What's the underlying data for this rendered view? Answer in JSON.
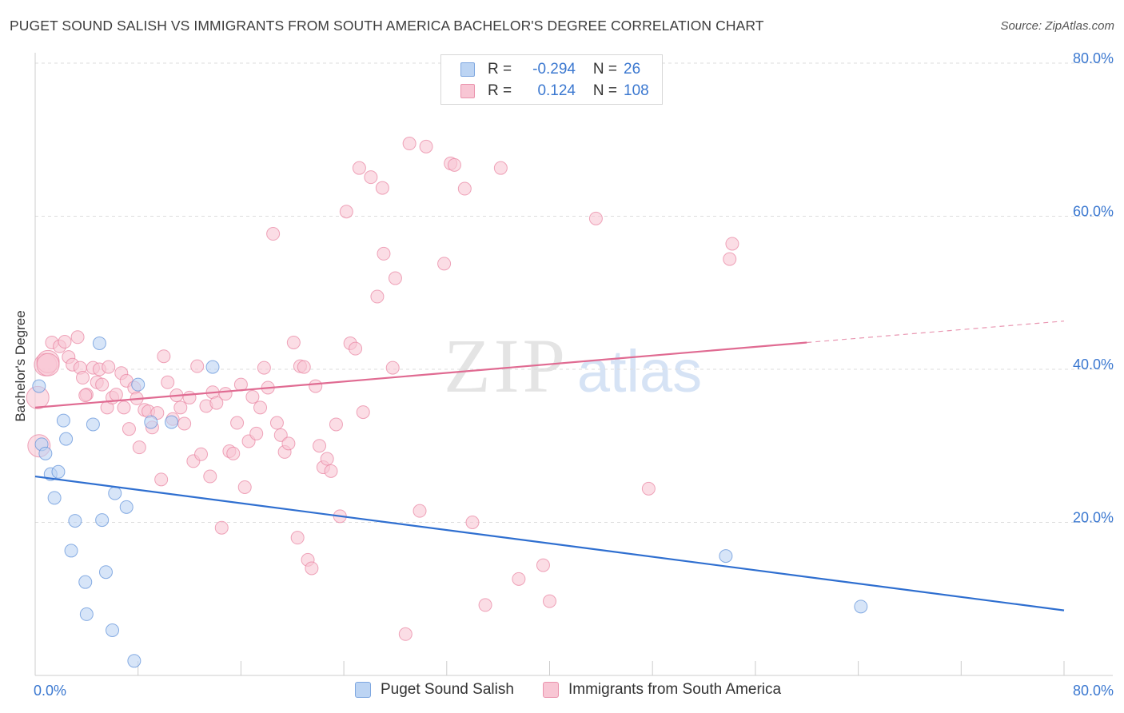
{
  "title": "PUGET SOUND SALISH VS IMMIGRANTS FROM SOUTH AMERICA BACHELOR'S DEGREE CORRELATION CHART",
  "source": "Source: ZipAtlas.com",
  "watermark": {
    "zip": "ZIP",
    "atlas": "atlas"
  },
  "legend_top": [
    {
      "r_label": "R =",
      "r_value": "-0.294",
      "n_label": "N =",
      "n_value": "26",
      "color": "#a8c8f0"
    },
    {
      "r_label": "R =",
      "r_value": "0.124",
      "n_label": "N =",
      "n_value": "108",
      "color": "#f7b6c8"
    }
  ],
  "chart_data": {
    "type": "scatter",
    "ylabel": "Bachelor's Degree",
    "xlim": [
      0,
      80
    ],
    "ylim": [
      0,
      80
    ],
    "x_tick_labels": [
      {
        "value": 0,
        "label": "0.0%"
      },
      {
        "value": 80,
        "label": "80.0%"
      }
    ],
    "y_tick_labels": [
      {
        "value": 20,
        "label": "20.0%"
      },
      {
        "value": 40,
        "label": "40.0%"
      },
      {
        "value": 60,
        "label": "60.0%"
      },
      {
        "value": 80,
        "label": "80.0%"
      }
    ],
    "grid": true,
    "legend_position": "bottom",
    "series": [
      {
        "name": "Puget Sound Salish",
        "color": "#5b8fd9",
        "fill": "#bcd4f3",
        "trend": {
          "x0": 0,
          "y0": 26.0,
          "x1": 80,
          "y1": 8.5,
          "color": "#2f6fd0",
          "dashed_from": null
        },
        "points": [
          [
            0.3,
            37.8
          ],
          [
            0.5,
            30.2
          ],
          [
            0.8,
            29.0
          ],
          [
            1.2,
            26.3
          ],
          [
            1.5,
            23.2
          ],
          [
            1.8,
            26.6
          ],
          [
            2.2,
            33.3
          ],
          [
            2.4,
            30.9
          ],
          [
            2.8,
            16.3
          ],
          [
            3.1,
            20.2
          ],
          [
            3.9,
            12.2
          ],
          [
            4.0,
            8.0
          ],
          [
            4.5,
            32.8
          ],
          [
            5.0,
            43.4
          ],
          [
            5.2,
            20.3
          ],
          [
            5.5,
            13.5
          ],
          [
            6.0,
            5.9
          ],
          [
            6.2,
            23.8
          ],
          [
            7.1,
            22.0
          ],
          [
            7.7,
            1.9
          ],
          [
            8.0,
            38.0
          ],
          [
            9.0,
            33.1
          ],
          [
            10.6,
            33.1
          ],
          [
            13.8,
            40.3
          ],
          [
            53.7,
            15.6
          ],
          [
            64.2,
            9.0
          ]
        ]
      },
      {
        "name": "Immigrants from South America",
        "color": "#e8819f",
        "fill": "#f8c6d4",
        "trend": {
          "x0": 0,
          "y0": 35.0,
          "x1": 60,
          "y1": 43.5,
          "color": "#e06b92",
          "dashed_from": 60,
          "x2": 80,
          "y2": 46.3
        },
        "points": [
          [
            0.2,
            36.3
          ],
          [
            0.3,
            30.0
          ],
          [
            0.8,
            40.6
          ],
          [
            1.0,
            41.0
          ],
          [
            1.3,
            43.5
          ],
          [
            1.9,
            43.0
          ],
          [
            2.3,
            43.6
          ],
          [
            2.6,
            41.6
          ],
          [
            2.9,
            40.6
          ],
          [
            3.3,
            44.2
          ],
          [
            3.5,
            40.2
          ],
          [
            3.7,
            38.9
          ],
          [
            4.0,
            36.7
          ],
          [
            4.5,
            40.2
          ],
          [
            4.8,
            38.3
          ],
          [
            5.0,
            40.0
          ],
          [
            5.2,
            38.0
          ],
          [
            5.6,
            35.0
          ],
          [
            6.0,
            36.3
          ],
          [
            6.3,
            36.7
          ],
          [
            6.7,
            39.5
          ],
          [
            6.9,
            35.0
          ],
          [
            7.1,
            38.5
          ],
          [
            7.3,
            32.2
          ],
          [
            7.7,
            37.6
          ],
          [
            8.1,
            29.8
          ],
          [
            8.5,
            34.7
          ],
          [
            8.8,
            34.5
          ],
          [
            9.1,
            32.4
          ],
          [
            9.5,
            34.3
          ],
          [
            9.8,
            25.6
          ],
          [
            10.0,
            41.7
          ],
          [
            10.3,
            38.3
          ],
          [
            10.7,
            33.5
          ],
          [
            11.0,
            36.6
          ],
          [
            11.3,
            35.0
          ],
          [
            11.6,
            32.9
          ],
          [
            12.0,
            36.3
          ],
          [
            12.3,
            28.0
          ],
          [
            12.6,
            40.4
          ],
          [
            12.9,
            28.9
          ],
          [
            13.3,
            35.2
          ],
          [
            13.6,
            26.0
          ],
          [
            13.8,
            37.0
          ],
          [
            14.1,
            35.6
          ],
          [
            14.5,
            19.3
          ],
          [
            14.8,
            36.8
          ],
          [
            15.1,
            29.3
          ],
          [
            15.4,
            29.0
          ],
          [
            15.7,
            33.0
          ],
          [
            16.0,
            38.0
          ],
          [
            16.3,
            24.6
          ],
          [
            16.6,
            30.6
          ],
          [
            16.9,
            36.4
          ],
          [
            17.2,
            31.6
          ],
          [
            17.5,
            35.0
          ],
          [
            17.8,
            40.2
          ],
          [
            18.1,
            37.6
          ],
          [
            18.5,
            57.7
          ],
          [
            18.8,
            33.0
          ],
          [
            19.1,
            31.4
          ],
          [
            19.4,
            29.2
          ],
          [
            19.7,
            30.3
          ],
          [
            20.1,
            43.5
          ],
          [
            20.4,
            18.0
          ],
          [
            20.6,
            40.4
          ],
          [
            20.9,
            40.3
          ],
          [
            21.2,
            15.1
          ],
          [
            21.5,
            14.0
          ],
          [
            21.8,
            37.8
          ],
          [
            22.1,
            30.0
          ],
          [
            22.4,
            27.2
          ],
          [
            22.7,
            28.3
          ],
          [
            23.0,
            26.7
          ],
          [
            23.4,
            32.8
          ],
          [
            23.7,
            20.8
          ],
          [
            24.2,
            60.6
          ],
          [
            24.5,
            43.4
          ],
          [
            24.9,
            42.7
          ],
          [
            25.2,
            66.3
          ],
          [
            25.5,
            34.4
          ],
          [
            26.1,
            65.1
          ],
          [
            26.6,
            49.5
          ],
          [
            27.1,
            55.1
          ],
          [
            27.0,
            63.7
          ],
          [
            27.8,
            40.2
          ],
          [
            28.0,
            51.9
          ],
          [
            28.8,
            5.4
          ],
          [
            29.1,
            69.5
          ],
          [
            29.9,
            21.5
          ],
          [
            30.4,
            69.1
          ],
          [
            31.8,
            53.8
          ],
          [
            32.3,
            66.9
          ],
          [
            32.6,
            66.7
          ],
          [
            33.4,
            63.6
          ],
          [
            34.0,
            20.0
          ],
          [
            35.0,
            9.2
          ],
          [
            36.2,
            66.3
          ],
          [
            37.6,
            12.6
          ],
          [
            39.5,
            14.4
          ],
          [
            40.0,
            9.7
          ],
          [
            43.6,
            59.7
          ],
          [
            47.7,
            24.4
          ],
          [
            54.0,
            54.4
          ],
          [
            54.2,
            56.4
          ],
          [
            1.0,
            40.6
          ],
          [
            5.7,
            40.3
          ],
          [
            3.9,
            36.6
          ],
          [
            7.9,
            36.2
          ]
        ]
      }
    ]
  }
}
